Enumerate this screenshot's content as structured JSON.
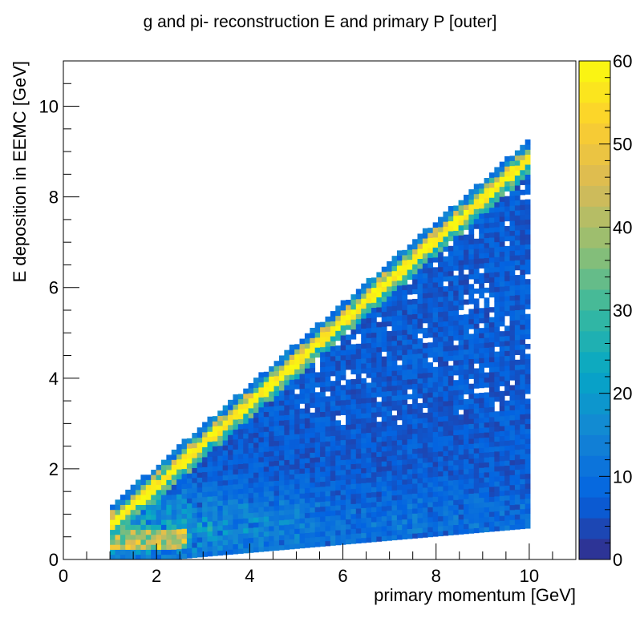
{
  "chart_data": {
    "type": "heatmap",
    "title": "g and pi- reconstruction E and primary P [outer]",
    "xlabel": "primary momentum [GeV]",
    "ylabel": "E deposition in EEMC [GeV]",
    "xlim": [
      0,
      11
    ],
    "ylim": [
      0,
      11
    ],
    "x_ticks": [
      "0",
      "2",
      "4",
      "6",
      "8",
      "10"
    ],
    "y_ticks": [
      "0",
      "2",
      "4",
      "6",
      "8",
      "10"
    ],
    "z_range": [
      0,
      60
    ],
    "z_ticks": [
      "0",
      "10",
      "20",
      "30",
      "40",
      "50",
      "60"
    ],
    "colormap": [
      "#352a87",
      "#0363e1",
      "#1485d4",
      "#06a7c6",
      "#38b99e",
      "#92bf73",
      "#d9ba56",
      "#fcce2e",
      "#f9fb0e"
    ],
    "x_bin_width": 0.11,
    "y_bin_width": 0.11,
    "data_x_range": [
      1,
      10
    ],
    "band": {
      "description": "E deposition approximately 0.9 * primary momentum",
      "slope": 0.9,
      "peak_counts": 60
    },
    "grid": false,
    "legend": "color bar on right"
  }
}
